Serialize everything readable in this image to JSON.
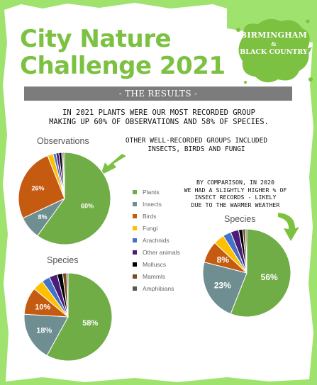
{
  "header": {
    "title_line1": "City Nature",
    "title_line2": "Challenge 2021",
    "logo_line1": "BIRMINGHAM",
    "logo_line2": "&",
    "logo_line3": "BLACK COUNTRY"
  },
  "banner": "- THE RESULTS -",
  "headline_line1": "IN 2021 PLANTS WERE OUR MOST RECORDED GROUP",
  "headline_line2": "MAKING UP 60% OF OBSERVATIONS AND 58% OF SPECIES.",
  "other_groups_line1": "OTHER WELL-RECORDED GROUPS INCLUDED",
  "other_groups_line2": "INSECTS, BIRDS AND FUNGI",
  "comparison_line1": "BY COMPARISON, IN 2020",
  "comparison_line2": "WE HAD A SLIGHTLY HIGHER % OF",
  "comparison_line3": "INSECT RECORDS - LIKELY",
  "comparison_line4": "DUE TO THE WARMER WEATHER",
  "colors": {
    "accent_green": "#7dc142",
    "background_green": "#9fe36e",
    "banner_grey": "#7c7c7c"
  },
  "chart_data": [
    {
      "type": "pie",
      "title": "Observations",
      "year": 2021,
      "categories": [
        "Plants",
        "Insects",
        "Birds",
        "Fungi",
        "Arachnids",
        "Other animals",
        "Molluscs",
        "Mammls",
        "Amphibians"
      ],
      "values": [
        60,
        8,
        26,
        2,
        1,
        1,
        1,
        0.5,
        0.5
      ],
      "data_labels": [
        "60%",
        "8%",
        "26%",
        "",
        "",
        "",
        "",
        "",
        ""
      ]
    },
    {
      "type": "pie",
      "title": "Species",
      "year": 2021,
      "categories": [
        "Plants",
        "Insects",
        "Birds",
        "Fungi",
        "Arachnids",
        "Other animals",
        "Molluscs",
        "Mammls",
        "Amphibians"
      ],
      "values": [
        58,
        18,
        10,
        4,
        3,
        3,
        2,
        1.5,
        0.5
      ],
      "data_labels": [
        "58%",
        "18%",
        "10%",
        "",
        "",
        "",
        "",
        "",
        ""
      ]
    },
    {
      "type": "pie",
      "title": "Species",
      "year": 2020,
      "categories": [
        "Plants",
        "Insects",
        "Birds",
        "Fungi",
        "Arachnids",
        "Other animals",
        "Molluscs",
        "Mammls",
        "Amphibians"
      ],
      "values": [
        56,
        23,
        8,
        4,
        3,
        3,
        1.5,
        1,
        0.5
      ],
      "data_labels": [
        "56%",
        "23%",
        "8%",
        "",
        "",
        "",
        "",
        "",
        ""
      ]
    }
  ],
  "legend": {
    "placement": "center",
    "items": [
      {
        "label": "Plants",
        "color": "#70ad47"
      },
      {
        "label": "Insects",
        "color": "#6e8e91"
      },
      {
        "label": "Birds",
        "color": "#c55a11"
      },
      {
        "label": "Fungi",
        "color": "#ffc000"
      },
      {
        "label": "Arachnids",
        "color": "#4472c4"
      },
      {
        "label": "Other animals",
        "color": "#4b1d7a"
      },
      {
        "label": "Molluscs",
        "color": "#000000"
      },
      {
        "label": "Mammls",
        "color": "#7a4b22"
      },
      {
        "label": "Amphibians",
        "color": "#4f5b5e"
      }
    ]
  }
}
